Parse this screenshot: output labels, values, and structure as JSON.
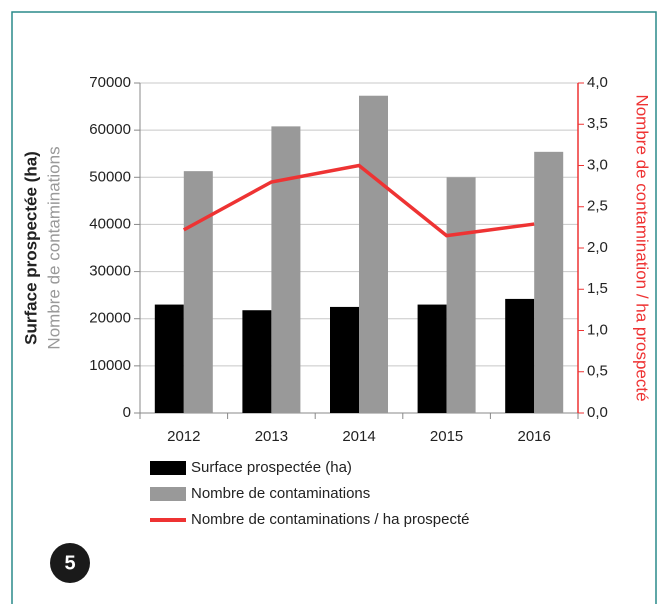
{
  "chart_data": {
    "type": "bar",
    "categories": [
      "2012",
      "2013",
      "2014",
      "2015",
      "2016"
    ],
    "series": [
      {
        "name": "Surface prospectée (ha)",
        "color": "#000000",
        "values": [
          23000,
          21800,
          22500,
          23000,
          24200
        ]
      },
      {
        "name": "Nombre de contaminations",
        "color": "#999999",
        "values": [
          51300,
          60800,
          67300,
          50000,
          55400
        ]
      },
      {
        "name": "Nombre de contaminations / ha prospecté",
        "color": "#ee3333",
        "type": "line",
        "axis": "y2",
        "values": [
          2.22,
          2.8,
          3.0,
          2.15,
          2.29
        ]
      }
    ],
    "ylabel": "Surface prospectée (ha)",
    "ylabel2": "Nombre de contaminations",
    "y2label": "Nombre de contamination / ha prospecté",
    "ylim": [
      0,
      70000
    ],
    "yticks": [
      0,
      10000,
      20000,
      30000,
      40000,
      50000,
      60000,
      70000
    ],
    "y2lim": [
      0,
      4
    ],
    "y2ticks": [
      {
        "value": 0,
        "label": "0,0"
      },
      {
        "value": 0.5,
        "label": "0,5"
      },
      {
        "value": 1,
        "label": "1,0"
      },
      {
        "value": 1.5,
        "label": "1,5"
      },
      {
        "value": 2,
        "label": "2,0"
      },
      {
        "value": 2.5,
        "label": "2,5"
      },
      {
        "value": 3,
        "label": "3,0"
      },
      {
        "value": 3.5,
        "label": "3,5"
      },
      {
        "value": 4,
        "label": "4,0"
      }
    ],
    "grid": true,
    "legend": "bottom"
  },
  "badge": "5"
}
